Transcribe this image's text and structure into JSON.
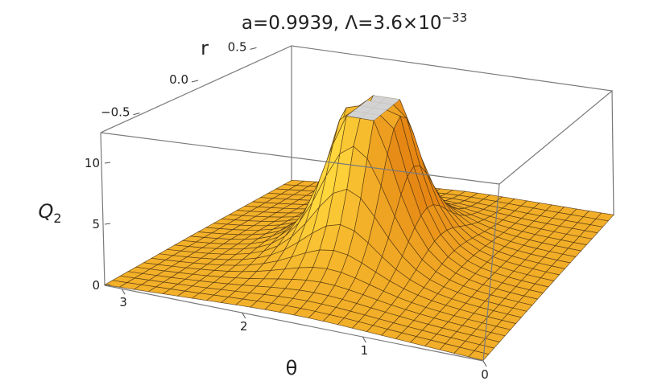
{
  "chart_data": {
    "type": "surface3d",
    "title": "a=0.9939, Λ=3.6×10",
    "title_exponent": "−33",
    "xlabel": "θ",
    "ylabel": "r",
    "zlabel": "Q",
    "zlabel_sub": "2",
    "theta_ticks": [
      "3",
      "2",
      "1",
      "0"
    ],
    "theta_tick_values": [
      3,
      2,
      1,
      0
    ],
    "r_ticks": [
      "−0.5",
      "0.0",
      "0.5"
    ],
    "r_tick_values": [
      -0.5,
      0.0,
      0.5
    ],
    "q_ticks": [
      "0",
      "5",
      "10"
    ],
    "q_tick_values": [
      0,
      5,
      10
    ],
    "theta_range": [
      0,
      3.14159
    ],
    "r_range": [
      -0.8,
      0.8
    ],
    "q_range": [
      0,
      12.5
    ],
    "surface": {
      "peak_theta": 1.5708,
      "peak_r": 0.0,
      "q_clip": 12.5,
      "surface_color": "#f5a623",
      "cap_color": "#d3d3d3"
    }
  }
}
